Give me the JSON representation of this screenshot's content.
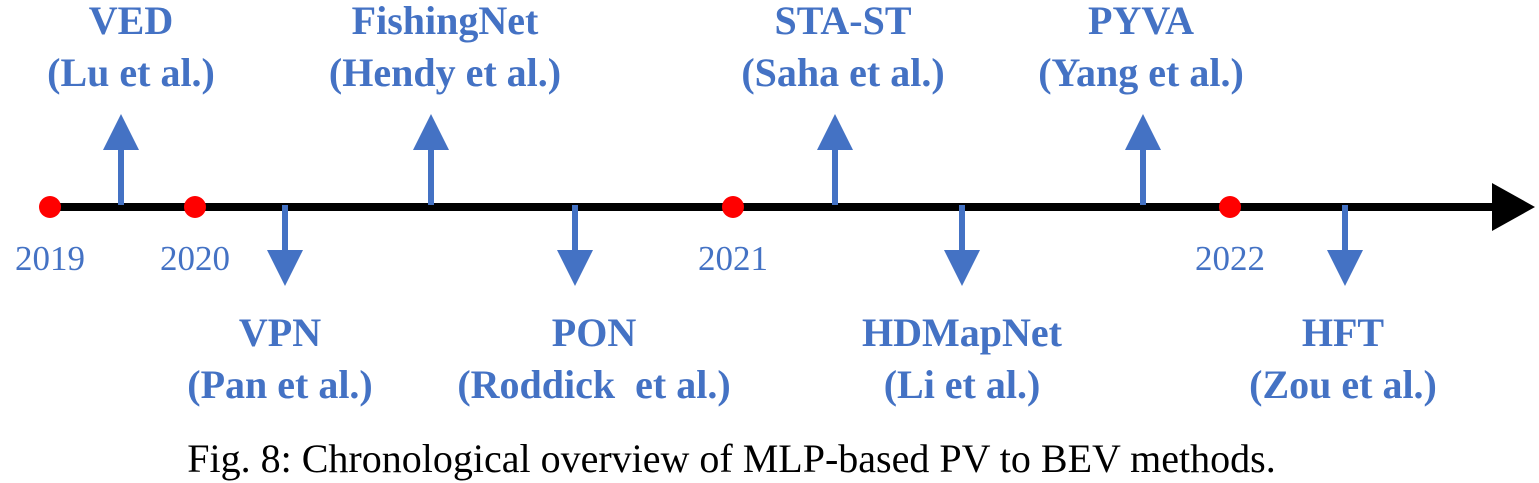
{
  "colors": {
    "axis": "#000000",
    "milestone_dot": "#ff0000",
    "arrow": "#4472c4",
    "label": "#4472c4",
    "caption": "#000000"
  },
  "years": [
    "2019",
    "2020",
    "2021",
    "2022"
  ],
  "methods": [
    {
      "name": "VED",
      "authors": "(Lu et al.)",
      "direction": "up"
    },
    {
      "name": "VPN",
      "authors": "(Pan et al.)",
      "direction": "down"
    },
    {
      "name": "FishingNet",
      "authors": "(Hendy et al.)",
      "direction": "up"
    },
    {
      "name": "PON",
      "authors": "(Roddick  et al.)",
      "direction": "down"
    },
    {
      "name": "STA-ST",
      "authors": "(Saha et al.)",
      "direction": "up"
    },
    {
      "name": "HDMapNet",
      "authors": "(Li et al.)",
      "direction": "down"
    },
    {
      "name": "PYVA",
      "authors": "(Yang et al.)",
      "direction": "up"
    },
    {
      "name": "HFT",
      "authors": "(Zou et al.)",
      "direction": "down"
    }
  ],
  "caption": "Fig. 8: Chronological overview of MLP-based PV to BEV methods."
}
